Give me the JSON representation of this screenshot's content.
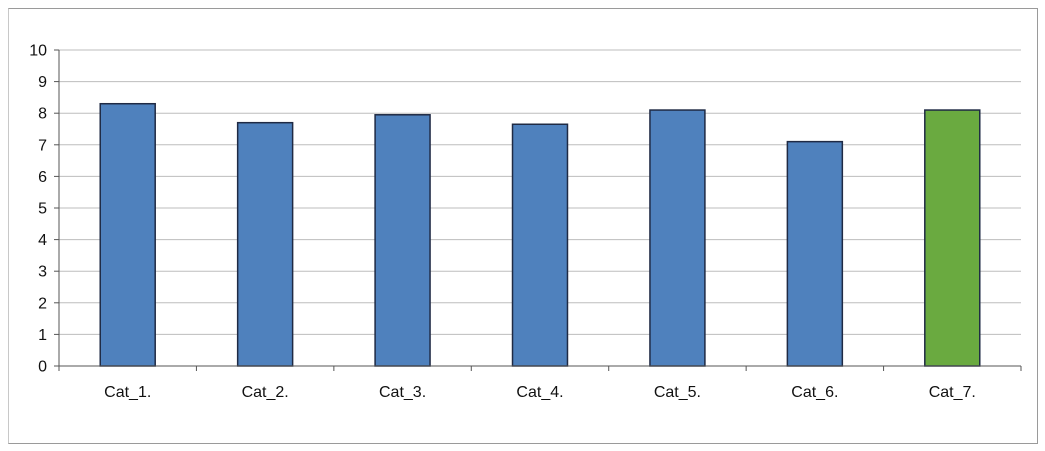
{
  "chart_data": {
    "type": "bar",
    "title": "",
    "xlabel": "",
    "ylabel": "",
    "categories": [
      "Cat_1.",
      "Cat_2.",
      "Cat_3.",
      "Cat_4.",
      "Cat_5.",
      "Cat_6.",
      "Cat_7."
    ],
    "values": [
      8.3,
      7.7,
      7.95,
      7.65,
      8.1,
      7.1,
      8.1
    ],
    "ylim": [
      0,
      10
    ],
    "yticks": [
      "0",
      "1",
      "2",
      "3",
      "4",
      "5",
      "6",
      "7",
      "8",
      "9",
      "10"
    ],
    "grid": true,
    "legend": "none",
    "bar_colors": [
      "#4f81bd",
      "#4f81bd",
      "#4f81bd",
      "#4f81bd",
      "#4f81bd",
      "#4f81bd",
      "#6aaa40"
    ],
    "bar_outline": "#1f2a44"
  }
}
